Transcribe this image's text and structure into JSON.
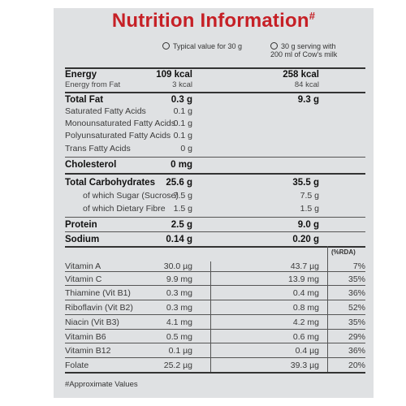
{
  "title": "Nutrition Information",
  "title_mark": "#",
  "columns": {
    "col1": "Typical value for 30 g",
    "col2_line1": "30 g serving with",
    "col2_line2": "200 ml of Cow's milk",
    "rda": "(%RDA)"
  },
  "rows": [
    {
      "label": "Energy",
      "v1": "109 kcal",
      "v2": "258 kcal",
      "v3": "",
      "style": "b"
    },
    {
      "label": "Energy from Fat",
      "v1": "3 kcal",
      "v2": "84 kcal",
      "v3": "",
      "style": "small"
    },
    {
      "label": "Total Fat",
      "v1": "0.3 g",
      "v2": "9.3 g",
      "v3": "",
      "style": "b"
    },
    {
      "label": "Saturated Fatty Acids",
      "v1": "0.1 g",
      "v2": "",
      "v3": "",
      "style": ""
    },
    {
      "label": "Monounsaturated Fatty Acids",
      "v1": "0.1 g",
      "v2": "",
      "v3": "",
      "style": ""
    },
    {
      "label": "Polyunsaturated Fatty Acids",
      "v1": "0.1 g",
      "v2": "",
      "v3": "",
      "style": ""
    },
    {
      "label": "Trans Fatty Acids",
      "v1": "0 g",
      "v2": "",
      "v3": "",
      "style": ""
    },
    {
      "label": "Cholesterol",
      "v1": "0 mg",
      "v2": "",
      "v3": "",
      "style": "b"
    },
    {
      "label": "Total Carbohydrates",
      "v1": "25.6 g",
      "v2": "35.5 g",
      "v3": "",
      "style": "b"
    },
    {
      "label": "of which Sugar (Sucrose)",
      "v1": "7.5 g",
      "v2": "7.5 g",
      "v3": "",
      "style": "ind"
    },
    {
      "label": "of which Dietary Fibre",
      "v1": "1.5 g",
      "v2": "1.5 g",
      "v3": "",
      "style": "ind"
    },
    {
      "label": "Protein",
      "v1": "2.5 g",
      "v2": "9.0 g",
      "v3": "",
      "style": "b"
    },
    {
      "label": "Sodium",
      "v1": "0.14 g",
      "v2": "0.20 g",
      "v3": "",
      "style": "b"
    },
    {
      "label": "Vitamin A",
      "v1": "30.0 µg",
      "v2": "43.7 µg",
      "v3": "7%",
      "style": ""
    },
    {
      "label": "Vitamin C",
      "v1": "9.9 mg",
      "v2": "13.9 mg",
      "v3": "35%",
      "style": ""
    },
    {
      "label": "Thiamine (Vit B1)",
      "v1": "0.3 mg",
      "v2": "0.4 mg",
      "v3": "36%",
      "style": ""
    },
    {
      "label": "Riboflavin (Vit B2)",
      "v1": "0.3 mg",
      "v2": "0.8 mg",
      "v3": "52%",
      "style": ""
    },
    {
      "label": "Niacin (Vit B3)",
      "v1": "4.1 mg",
      "v2": "4.2 mg",
      "v3": "35%",
      "style": ""
    },
    {
      "label": "Vitamin B6",
      "v1": "0.5 mg",
      "v2": "0.6 mg",
      "v3": "29%",
      "style": ""
    },
    {
      "label": "Vitamin B12",
      "v1": "0.1 µg",
      "v2": "0.4 µg",
      "v3": "36%",
      "style": ""
    },
    {
      "label": "Folate",
      "v1": "25.2 µg",
      "v2": "39.3 µg",
      "v3": "20%",
      "style": ""
    }
  ],
  "footnote": "#Approximate Values",
  "colors": {
    "title": "#c62026",
    "panel": "#dfe1e3"
  }
}
